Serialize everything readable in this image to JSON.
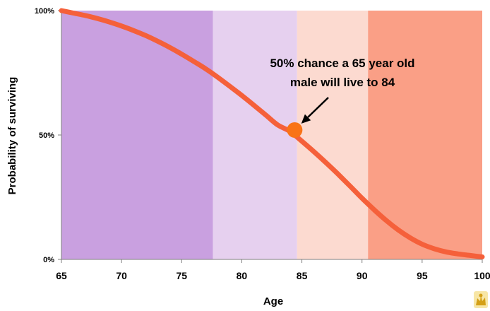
{
  "chart_data": {
    "type": "line",
    "title": "",
    "xlabel": "Age",
    "ylabel": "Probability of surviving",
    "xlim": [
      65,
      100
    ],
    "ylim": [
      0,
      100
    ],
    "x_ticks": [
      "65",
      "70",
      "75",
      "80",
      "85",
      "90",
      "95",
      "100"
    ],
    "x_tick_values": [
      65,
      70,
      75,
      80,
      85,
      90,
      95,
      100
    ],
    "y_ticks": [
      "0%",
      "50%",
      "100%"
    ],
    "y_tick_values": [
      0,
      50,
      100
    ],
    "grid": false,
    "legend": "none",
    "bands": [
      {
        "from": 65,
        "to": 77.6,
        "color": "#c9a0e0"
      },
      {
        "from": 77.6,
        "to": 84.6,
        "color": "#e6d0ef"
      },
      {
        "from": 84.6,
        "to": 90.5,
        "color": "#fcdad0"
      },
      {
        "from": 90.5,
        "to": 100,
        "color": "#fa9f86"
      }
    ],
    "series": [
      {
        "color": "#f5603a",
        "x": [
          65,
          66,
          67,
          68,
          69,
          70,
          71,
          72,
          73,
          74,
          75,
          76,
          77,
          78,
          79,
          80,
          81,
          82,
          83,
          84,
          85,
          86,
          87,
          88,
          89,
          90,
          91,
          92,
          93,
          94,
          95,
          96,
          97,
          98,
          99,
          100
        ],
        "y": [
          100,
          99,
          98,
          96.8,
          95.4,
          93.8,
          92,
          90,
          87.7,
          85.2,
          82.5,
          79.6,
          76.6,
          73.2,
          69.6,
          65.9,
          62,
          58,
          54,
          51.5,
          47.5,
          43.3,
          38.9,
          34.3,
          29.5,
          24.6,
          20,
          15.7,
          11.9,
          8.7,
          6.1,
          4.3,
          3,
          2.2,
          1.6,
          1
        ]
      }
    ],
    "highlight_point": {
      "x": 84.4,
      "y": 52,
      "color": "#f97316"
    },
    "annotation": {
      "lines": [
        "50% chance a 65 year old",
        "male will live to 84"
      ]
    }
  }
}
